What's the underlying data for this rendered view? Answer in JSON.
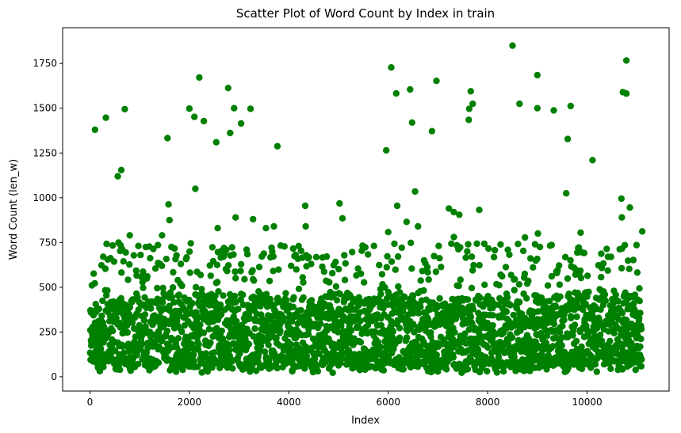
{
  "chart_data": {
    "type": "scatter",
    "title": "Scatter Plot of Word Count by Index in train",
    "xlabel": "Index",
    "ylabel": "Word Count (len_w)",
    "xlim": [
      -550,
      11650
    ],
    "ylim": [
      -80,
      1950
    ],
    "x_ticks": [
      0,
      2000,
      4000,
      6000,
      8000,
      10000
    ],
    "y_ticks": [
      0,
      250,
      500,
      750,
      1000,
      1250,
      1500,
      1750
    ],
    "x_tick_labels": [
      "0",
      "2000",
      "4000",
      "6000",
      "8000",
      "10000"
    ],
    "y_tick_labels": [
      "0",
      "250",
      "500",
      "750",
      "1000",
      "1250",
      "1500",
      "1750"
    ],
    "grid": false,
    "legend": "none",
    "color": "#008000",
    "n_points": 11100,
    "bulk_range": [
      20,
      620
    ],
    "outliers": [
      {
        "x": 100,
        "y": 1380
      },
      {
        "x": 320,
        "y": 1447
      },
      {
        "x": 700,
        "y": 1495
      },
      {
        "x": 560,
        "y": 1120
      },
      {
        "x": 630,
        "y": 1155
      },
      {
        "x": 1560,
        "y": 1333
      },
      {
        "x": 2000,
        "y": 1498
      },
      {
        "x": 2100,
        "y": 1452
      },
      {
        "x": 2200,
        "y": 1672
      },
      {
        "x": 2290,
        "y": 1428
      },
      {
        "x": 2540,
        "y": 1310
      },
      {
        "x": 2780,
        "y": 1613
      },
      {
        "x": 2820,
        "y": 1362
      },
      {
        "x": 2900,
        "y": 1500
      },
      {
        "x": 3040,
        "y": 1415
      },
      {
        "x": 3230,
        "y": 1497
      },
      {
        "x": 3770,
        "y": 1288
      },
      {
        "x": 2120,
        "y": 1050
      },
      {
        "x": 1580,
        "y": 963
      },
      {
        "x": 1600,
        "y": 875
      },
      {
        "x": 2930,
        "y": 890
      },
      {
        "x": 3280,
        "y": 880
      },
      {
        "x": 4330,
        "y": 955
      },
      {
        "x": 5020,
        "y": 968
      },
      {
        "x": 5080,
        "y": 885
      },
      {
        "x": 5960,
        "y": 1265
      },
      {
        "x": 6060,
        "y": 1728
      },
      {
        "x": 6160,
        "y": 1583
      },
      {
        "x": 6440,
        "y": 1605
      },
      {
        "x": 6480,
        "y": 1420
      },
      {
        "x": 6540,
        "y": 1035
      },
      {
        "x": 6180,
        "y": 955
      },
      {
        "x": 6000,
        "y": 808
      },
      {
        "x": 6880,
        "y": 1372
      },
      {
        "x": 6970,
        "y": 1653
      },
      {
        "x": 7220,
        "y": 940
      },
      {
        "x": 7320,
        "y": 920
      },
      {
        "x": 7430,
        "y": 905
      },
      {
        "x": 7620,
        "y": 1435
      },
      {
        "x": 7630,
        "y": 1497
      },
      {
        "x": 7660,
        "y": 1595
      },
      {
        "x": 7700,
        "y": 1525
      },
      {
        "x": 7830,
        "y": 932
      },
      {
        "x": 8500,
        "y": 1850
      },
      {
        "x": 8640,
        "y": 1525
      },
      {
        "x": 9000,
        "y": 1500
      },
      {
        "x": 9000,
        "y": 1685
      },
      {
        "x": 9330,
        "y": 1488
      },
      {
        "x": 9580,
        "y": 1025
      },
      {
        "x": 9610,
        "y": 1328
      },
      {
        "x": 9670,
        "y": 1512
      },
      {
        "x": 9870,
        "y": 805
      },
      {
        "x": 10110,
        "y": 1210
      },
      {
        "x": 10690,
        "y": 995
      },
      {
        "x": 10700,
        "y": 890
      },
      {
        "x": 10720,
        "y": 1590
      },
      {
        "x": 10790,
        "y": 1582
      },
      {
        "x": 10790,
        "y": 1767
      },
      {
        "x": 10860,
        "y": 945
      },
      {
        "x": 11110,
        "y": 812
      },
      {
        "x": 800,
        "y": 790
      },
      {
        "x": 1450,
        "y": 790
      },
      {
        "x": 2570,
        "y": 830
      },
      {
        "x": 3540,
        "y": 830
      },
      {
        "x": 3700,
        "y": 840
      },
      {
        "x": 4340,
        "y": 840
      },
      {
        "x": 6370,
        "y": 865
      },
      {
        "x": 6600,
        "y": 840
      },
      {
        "x": 7320,
        "y": 780
      },
      {
        "x": 8750,
        "y": 778
      },
      {
        "x": 9010,
        "y": 800
      }
    ]
  }
}
